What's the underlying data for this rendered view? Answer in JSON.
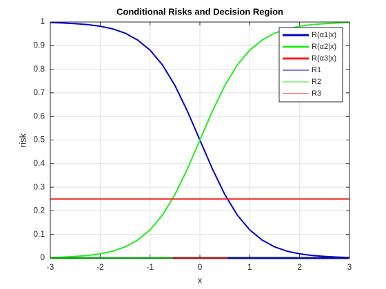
{
  "chart_data": {
    "type": "line",
    "title": "Conditional Risks and Decision Region",
    "xlabel": "x",
    "ylabel": "risk",
    "x": [
      -3,
      -2.75,
      -2.5,
      -2.25,
      -2,
      -1.75,
      -1.5,
      -1.25,
      -1,
      -0.75,
      -0.5,
      -0.25,
      0,
      0.25,
      0.5,
      0.75,
      1,
      1.25,
      1.5,
      1.75,
      2,
      2.25,
      2.5,
      2.75,
      3
    ],
    "series": [
      {
        "name": "R(α1|x)",
        "color": "#0000cc",
        "values": [
          0.998,
          0.996,
          0.993,
          0.989,
          0.982,
          0.971,
          0.953,
          0.924,
          0.881,
          0.818,
          0.731,
          0.622,
          0.5,
          0.378,
          0.269,
          0.182,
          0.119,
          0.076,
          0.047,
          0.029,
          0.018,
          0.011,
          0.007,
          0.004,
          0.002
        ]
      },
      {
        "name": "R(α2|x)",
        "color": "#22ee22",
        "values": [
          0.002,
          0.004,
          0.007,
          0.011,
          0.018,
          0.029,
          0.047,
          0.076,
          0.119,
          0.182,
          0.269,
          0.378,
          0.5,
          0.622,
          0.731,
          0.818,
          0.881,
          0.924,
          0.953,
          0.971,
          0.982,
          0.989,
          0.993,
          0.996,
          0.998
        ]
      },
      {
        "name": "R(α3|x)",
        "color": "#ee2222",
        "values": [
          0.25,
          0.25,
          0.25,
          0.25,
          0.25,
          0.25,
          0.25,
          0.25,
          0.25,
          0.25,
          0.25,
          0.25,
          0.25,
          0.25,
          0.25,
          0.25,
          0.25,
          0.25,
          0.25,
          0.25,
          0.25,
          0.25,
          0.25,
          0.25,
          0.25
        ]
      },
      {
        "name": "R1",
        "color": "#0000cc",
        "x": [
          0.55,
          3
        ],
        "values": [
          0,
          0
        ]
      },
      {
        "name": "R2",
        "color": "#22ee22",
        "x": [
          -3,
          -0.55
        ],
        "values": [
          0,
          0
        ]
      },
      {
        "name": "R3",
        "color": "#ee2222",
        "x": [
          -0.55,
          0.55
        ],
        "values": [
          0,
          0
        ]
      }
    ],
    "xlim": [
      -3,
      3
    ],
    "xticks": [
      -3,
      -2,
      -1,
      0,
      1,
      2,
      3
    ],
    "ylim": [
      0,
      1
    ],
    "yticks": [
      0,
      0.1,
      0.2,
      0.3,
      0.4,
      0.5,
      0.6,
      0.7,
      0.8,
      0.9,
      1
    ],
    "grid": true,
    "legend": "northeast"
  }
}
